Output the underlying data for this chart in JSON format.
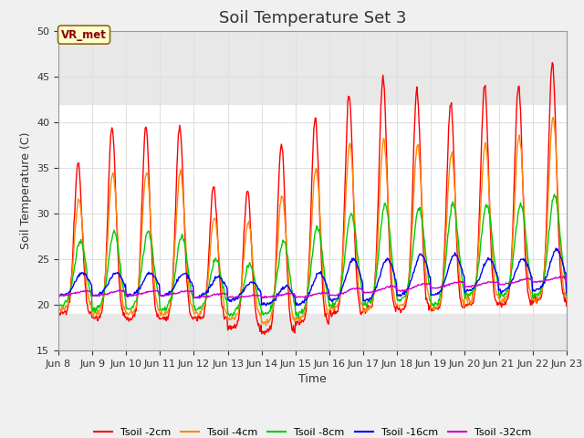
{
  "title": "Soil Temperature Set 3",
  "xlabel": "Time",
  "ylabel": "Soil Temperature (C)",
  "ylim": [
    15,
    50
  ],
  "xlim": [
    0,
    360
  ],
  "annotation": "VR_met",
  "background_fig": "#f0f0f0",
  "background_ax": "#ffffff",
  "background_band": "#e8e8e8",
  "series_colors": [
    "#ff0000",
    "#ff8800",
    "#00cc00",
    "#0000ff",
    "#cc00cc"
  ],
  "series_labels": [
    "Tsoil -2cm",
    "Tsoil -4cm",
    "Tsoil -8cm",
    "Tsoil -16cm",
    "Tsoil -32cm"
  ],
  "xtick_labels": [
    "Jun 8",
    "Jun 9",
    "Jun 10",
    "Jun 11",
    "Jun 12",
    "Jun 13",
    "Jun 14",
    "Jun 15",
    "Jun 16",
    "Jun 17",
    "Jun 18",
    "Jun 19",
    "Jun 20",
    "Jun 21",
    "Jun 22",
    "Jun 23"
  ],
  "xtick_positions": [
    0,
    24,
    48,
    72,
    96,
    120,
    144,
    168,
    192,
    216,
    240,
    264,
    288,
    312,
    336,
    360
  ],
  "ytick_values": [
    15,
    20,
    25,
    30,
    35,
    40,
    45,
    50
  ],
  "grid_color": "#e0e0e0",
  "title_fontsize": 13,
  "label_fontsize": 9,
  "tick_fontsize": 8
}
